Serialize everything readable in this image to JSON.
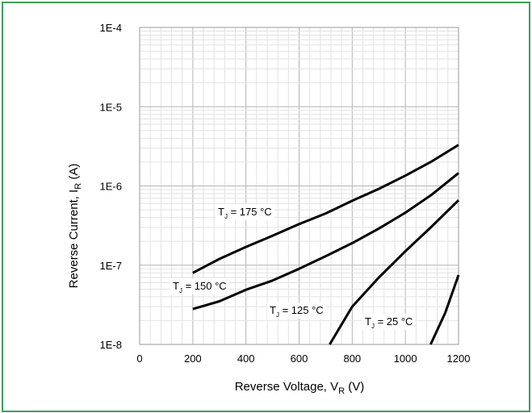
{
  "colors": {
    "frame": "#3aa05a",
    "curve": "#000000",
    "major_grid": "#b4b4b4",
    "minor_grid": "#e2e2e2"
  },
  "chart_data": {
    "type": "line",
    "title": "",
    "xlabel": "Reverse Voltage, V",
    "xlabel_sub": "R",
    "xlabel_unit": " (V)",
    "ylabel": "Reverse Current, I",
    "ylabel_sub": "R",
    "ylabel_unit": " (A)",
    "y_scale": "log",
    "xlim": [
      0,
      1200
    ],
    "ylim": [
      1e-08,
      0.0001
    ],
    "grid": true,
    "x_ticks": [
      0,
      200,
      400,
      600,
      800,
      1000,
      1200
    ],
    "x_tick_labels": [
      "0",
      "200",
      "400",
      "600",
      "800",
      "1000",
      "1200"
    ],
    "y_ticks": [
      1e-08,
      1e-07,
      1e-06,
      1e-05,
      0.0001
    ],
    "y_tick_labels": [
      "1E-8",
      "1E-7",
      "1E-6",
      "1E-5",
      "1E-4"
    ],
    "series": [
      {
        "name": "T_J = 175 °C",
        "label_main": "T",
        "label_sub": "J",
        "label_rest": " = 175 °C",
        "points": [
          [
            200,
            8e-08
          ],
          [
            300,
            1.2e-07
          ],
          [
            400,
            1.7e-07
          ],
          [
            500,
            2.35e-07
          ],
          [
            600,
            3.3e-07
          ],
          [
            700,
            4.5e-07
          ],
          [
            800,
            6.5e-07
          ],
          [
            900,
            9.2e-07
          ],
          [
            1000,
            1.35e-06
          ],
          [
            1100,
            2.05e-06
          ],
          [
            1200,
            3.3e-06
          ]
        ]
      },
      {
        "name": "T_J = 150 °C",
        "label_main": "T",
        "label_sub": "J",
        "label_rest": " = 150 °C",
        "points": [
          [
            200,
            2.8e-08
          ],
          [
            300,
            3.5e-08
          ],
          [
            400,
            4.9e-08
          ],
          [
            500,
            6.4e-08
          ],
          [
            600,
            9e-08
          ],
          [
            700,
            1.3e-07
          ],
          [
            800,
            1.9e-07
          ],
          [
            900,
            2.9e-07
          ],
          [
            1000,
            4.6e-07
          ],
          [
            1100,
            7.8e-07
          ],
          [
            1200,
            1.45e-06
          ]
        ]
      },
      {
        "name": "T_J = 125 °C",
        "label_main": "T",
        "label_sub": "J",
        "label_rest": " = 125 °C",
        "points": [
          [
            715,
            1e-08
          ],
          [
            800,
            3e-08
          ],
          [
            900,
            7e-08
          ],
          [
            1000,
            1.5e-07
          ],
          [
            1100,
            3.1e-07
          ],
          [
            1200,
            6.6e-07
          ]
        ]
      },
      {
        "name": "T_J = 25 °C",
        "label_main": "T",
        "label_sub": "J",
        "label_rest": " =  25 °C",
        "points": [
          [
            1095,
            1e-08
          ],
          [
            1150,
            2.5e-08
          ],
          [
            1200,
            7.5e-08
          ]
        ]
      }
    ]
  }
}
